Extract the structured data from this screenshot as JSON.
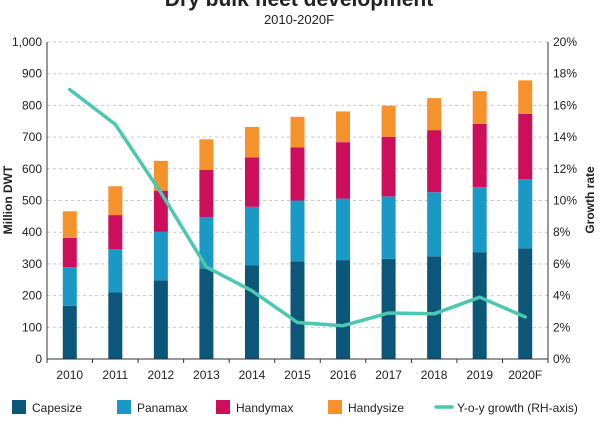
{
  "chart_data": {
    "type": "bar",
    "stacked": true,
    "title": "Dry bulk fleet development",
    "subtitle": "2010-2020F",
    "categories": [
      "2010",
      "2011",
      "2012",
      "2013",
      "2014",
      "2015",
      "2016",
      "2017",
      "2018",
      "2019",
      "2020F"
    ],
    "ylabel": "Million DWT",
    "y2label": "Growth rate",
    "ylim": [
      0,
      1000
    ],
    "y2lim": [
      0,
      20
    ],
    "yticks": [
      "0",
      "100",
      "200",
      "300",
      "400",
      "500",
      "600",
      "700",
      "800",
      "900",
      "1,000"
    ],
    "y2ticks": [
      "0%",
      "2%",
      "4%",
      "6%",
      "8%",
      "10%",
      "12%",
      "14%",
      "16%",
      "18%",
      "20%"
    ],
    "grid": true,
    "legend_position": "bottom",
    "series": [
      {
        "name": "Capesize",
        "color": "#0c5679",
        "values": [
          168,
          210,
          248,
          285,
          295,
          308,
          312,
          316,
          324,
          336,
          349
        ]
      },
      {
        "name": "Panamax",
        "color": "#1b99c6",
        "values": [
          122,
          136,
          153,
          163,
          185,
          192,
          194,
          197,
          202,
          206,
          218
        ]
      },
      {
        "name": "Handymax",
        "color": "#cd0f5b",
        "values": [
          92,
          108,
          130,
          149,
          156,
          168,
          178,
          188,
          196,
          200,
          206
        ]
      },
      {
        "name": "Handysize",
        "color": "#f5922c",
        "values": [
          84,
          91,
          94,
          96,
          96,
          96,
          97,
          98,
          101,
          103,
          106
        ]
      }
    ],
    "line_series": {
      "name": "Y-o-y growth (RH-axis)",
      "color": "#4cc7b0",
      "axis": "right",
      "values": [
        17.0,
        14.8,
        10.5,
        5.8,
        4.3,
        2.3,
        2.1,
        2.9,
        2.85,
        3.9,
        2.65
      ]
    }
  }
}
